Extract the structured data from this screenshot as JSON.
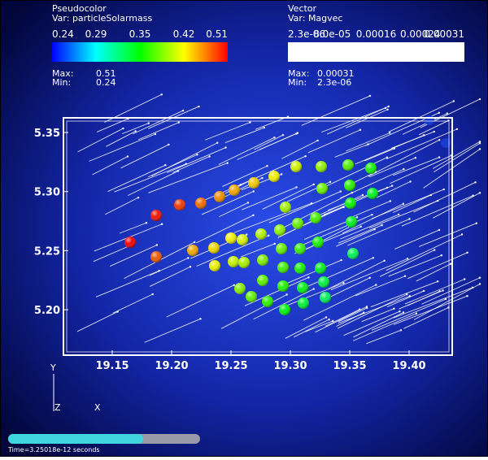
{
  "pseudocolor_legend": {
    "title": "Pseudocolor",
    "variable": "Var: particleSolarmass",
    "ticks": [
      "0.24",
      "0.29",
      "0.35",
      "0.42",
      "0.51"
    ],
    "max_label": "Max:",
    "max_value": "0.51",
    "min_label": "Min:",
    "min_value": "0.24"
  },
  "vector_legend": {
    "title": "Vector",
    "variable": "Var: Magvec",
    "ticks": [
      "2.3e-06",
      "8.0e-05",
      "0.00016",
      "0.00024",
      "0.00031"
    ],
    "max_label": "Max:",
    "max_value": "0.00031",
    "min_label": "Min:",
    "min_value": "2.3e-06"
  },
  "axes": {
    "x_ticks": [
      "19.15",
      "19.20",
      "19.25",
      "19.30",
      "19.35",
      "19.40"
    ],
    "y_ticks": [
      "5.35",
      "5.30",
      "5.25",
      "5.20"
    ]
  },
  "triad": {
    "y": "Y",
    "z": "Z",
    "x": "X"
  },
  "time_label": "Time=3.25018e-12 seconds"
}
